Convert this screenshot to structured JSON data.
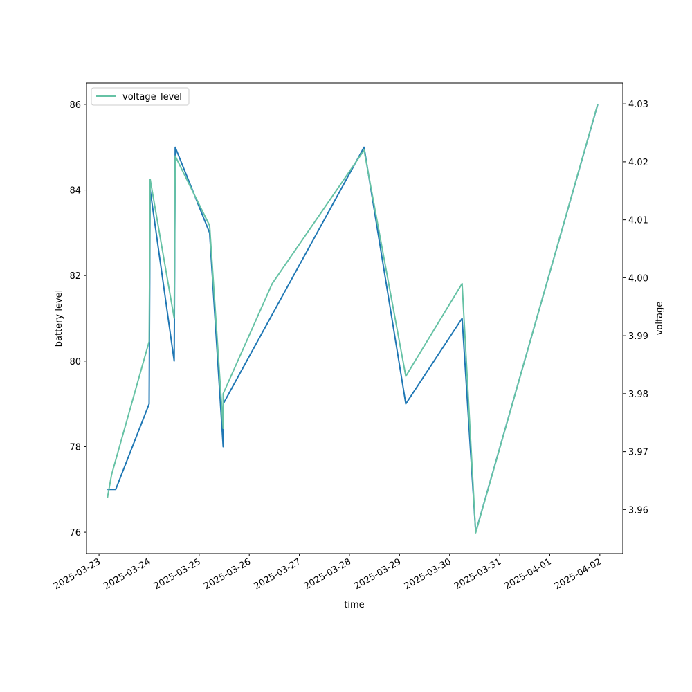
{
  "chart_data": {
    "type": "line",
    "title": "",
    "xlabel": "time",
    "ylabel": "battery level",
    "y2label": "voltage",
    "x_tick_labels": [
      "2025-03-23",
      "2025-03-24",
      "2025-03-25",
      "2025-03-26",
      "2025-03-27",
      "2025-03-28",
      "2025-03-29",
      "2025-03-30",
      "2025-03-31",
      "2025-04-01",
      "2025-04-02"
    ],
    "y_ticks": [
      76,
      78,
      80,
      82,
      84,
      86
    ],
    "y2_ticks": [
      "3.96",
      "3.97",
      "3.98",
      "3.99",
      "4.00",
      "4.01",
      "4.02",
      "4.03"
    ],
    "ylim": [
      75.5,
      86.5
    ],
    "y2lim": [
      3.9524,
      4.0336
    ],
    "xlim": [
      "2025-03-22 18:00",
      "2025-04-02 11:00"
    ],
    "grid": false,
    "legend": {
      "placement": "upper-left",
      "entries": [
        "level",
        "voltage"
      ]
    },
    "series": [
      {
        "name": "level",
        "axis": "left",
        "color": "#1f77b4",
        "points": [
          [
            "2025-03-23 04:00",
            77
          ],
          [
            "2025-03-23 08:00",
            77
          ],
          [
            "2025-03-24 00:00",
            79
          ],
          [
            "2025-03-24 00:30",
            84
          ],
          [
            "2025-03-24 12:00",
            80
          ],
          [
            "2025-03-24 12:30",
            85
          ],
          [
            "2025-03-25 05:00",
            83
          ],
          [
            "2025-03-25 11:30",
            78
          ],
          [
            "2025-03-25 11:30",
            79
          ],
          [
            "2025-03-28 07:00",
            85
          ],
          [
            "2025-03-29 03:00",
            79
          ],
          [
            "2025-03-30 06:00",
            81
          ],
          [
            "2025-03-30 12:30",
            76
          ],
          [
            "2025-04-01 23:00",
            86
          ]
        ]
      },
      {
        "name": "voltage",
        "axis": "right",
        "color": "#66c2a5",
        "points": [
          [
            "2025-03-23 04:00",
            3.962
          ],
          [
            "2025-03-23 06:00",
            3.966
          ],
          [
            "2025-03-24 00:00",
            3.989
          ],
          [
            "2025-03-24 00:30",
            4.017
          ],
          [
            "2025-03-24 12:00",
            3.993
          ],
          [
            "2025-03-24 12:30",
            4.021
          ],
          [
            "2025-03-25 05:00",
            4.009
          ],
          [
            "2025-03-25 11:30",
            3.974
          ],
          [
            "2025-03-25 11:30",
            3.98
          ],
          [
            "2025-03-26 11:00",
            3.999
          ],
          [
            "2025-03-28 07:00",
            4.022
          ],
          [
            "2025-03-29 03:00",
            3.983
          ],
          [
            "2025-03-30 06:00",
            3.999
          ],
          [
            "2025-03-30 12:30",
            3.956
          ],
          [
            "2025-04-01 23:00",
            4.03
          ]
        ]
      }
    ]
  }
}
